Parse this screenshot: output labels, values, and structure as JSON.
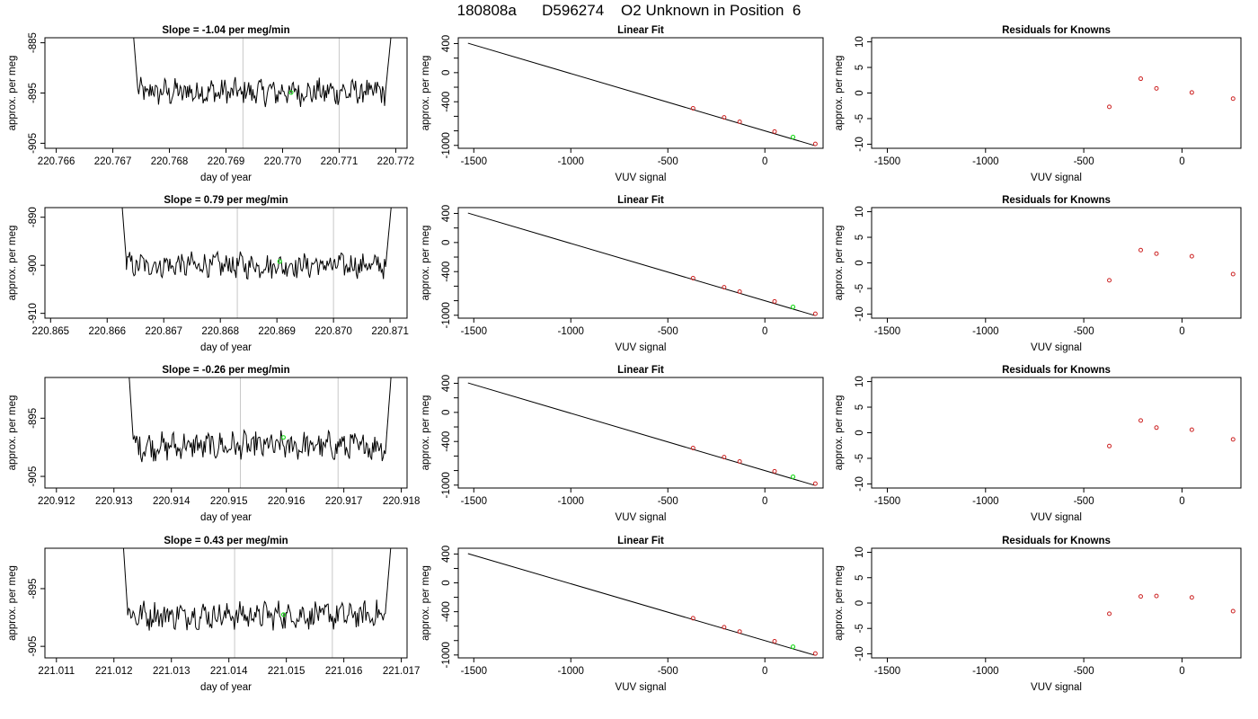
{
  "figure": {
    "title": "180808a      D596274    O2 Unknown in Position  6"
  },
  "colors": {
    "trace": "#000000",
    "marker_known": "#cc2222",
    "marker_unknown": "#22dd22",
    "gridline": "#c8c8c8"
  },
  "chart_data": [
    {
      "type": "line",
      "panel": "row1-timeseries",
      "title": "Slope =  -1.04  per meg/min",
      "xlabel": "day of year",
      "ylabel": "approx. per meg",
      "xticks": [
        "220.766",
        "220.767",
        "220.768",
        "220.769",
        "220.770",
        "220.771",
        "220.772"
      ],
      "xtick_values": [
        220.766,
        220.767,
        220.768,
        220.769,
        220.77,
        220.771,
        220.772
      ],
      "yticks": [
        "-885",
        "-895",
        "-905"
      ],
      "ytick_values": [
        -885,
        -895,
        -905
      ],
      "xlim": [
        220.7658,
        220.7722
      ],
      "ylim": [
        -906,
        -884
      ],
      "vlines": [
        220.7693,
        220.771
      ],
      "trace": {
        "start": 220.7674,
        "end": 220.772,
        "mean": -894.8,
        "amp": 2.2
      },
      "unknown_point": {
        "x": 220.77015,
        "y": -894.9
      }
    },
    {
      "type": "line",
      "panel": "row2-timeseries",
      "title": "Slope =  0.79  per meg/min",
      "xlabel": "day of year",
      "ylabel": "approx. per meg",
      "xticks": [
        "220.865",
        "220.866",
        "220.867",
        "220.868",
        "220.869",
        "220.870",
        "220.871"
      ],
      "xtick_values": [
        220.865,
        220.866,
        220.867,
        220.868,
        220.869,
        220.87,
        220.871
      ],
      "yticks": [
        "-890",
        "-900",
        "-910"
      ],
      "ytick_values": [
        -890,
        -900,
        -910
      ],
      "xlim": [
        220.8649,
        220.8713
      ],
      "ylim": [
        -911,
        -888
      ],
      "vlines": [
        220.8683,
        220.87
      ],
      "trace": {
        "start": 220.8663,
        "end": 220.8711,
        "mean": -900.0,
        "amp": 2.2
      },
      "unknown_point": {
        "x": 220.86905,
        "y": -899.2
      }
    },
    {
      "type": "line",
      "panel": "row3-timeseries",
      "title": "Slope =  -0.26  per meg/min",
      "xlabel": "day of year",
      "ylabel": "approx. per meg",
      "xticks": [
        "220.912",
        "220.913",
        "220.914",
        "220.915",
        "220.916",
        "220.917",
        "220.918"
      ],
      "xtick_values": [
        220.912,
        220.913,
        220.914,
        220.915,
        220.916,
        220.917,
        220.918
      ],
      "yticks": [
        "-895",
        "-905"
      ],
      "ytick_values": [
        -895,
        -905
      ],
      "xlim": [
        220.9118,
        220.9181
      ],
      "ylim": [
        -907,
        -888
      ],
      "vlines": [
        220.9152,
        220.9169
      ],
      "trace": {
        "start": 220.9133,
        "end": 220.9179,
        "mean": -899.8,
        "amp": 2.0
      },
      "unknown_point": {
        "x": 220.91595,
        "y": -898.3
      }
    },
    {
      "type": "line",
      "panel": "row4-timeseries",
      "title": "Slope =  0.43  per meg/min",
      "xlabel": "day of year",
      "ylabel": "approx. per meg",
      "xticks": [
        "221.011",
        "221.012",
        "221.013",
        "221.014",
        "221.015",
        "221.016",
        "221.017"
      ],
      "xtick_values": [
        221.011,
        221.012,
        221.013,
        221.014,
        221.015,
        221.016,
        221.017
      ],
      "yticks": [
        "-895",
        "-905"
      ],
      "ytick_values": [
        -895,
        -905
      ],
      "xlim": [
        221.0108,
        221.0171
      ],
      "ylim": [
        -907,
        -888
      ],
      "vlines": [
        221.0141,
        221.0158
      ],
      "trace": {
        "start": 221.0122,
        "end": 221.0169,
        "mean": -899.6,
        "amp": 2.0
      },
      "unknown_point": {
        "x": 221.01495,
        "y": -899.5
      }
    },
    {
      "type": "scatter",
      "panel": "row1-linearfit",
      "title": "Linear Fit",
      "xlabel": "VUV signal",
      "ylabel": "approx. per meg",
      "xticks": [
        "-1500",
        "-1000",
        "-500",
        "0"
      ],
      "xtick_values": [
        -1500,
        -1000,
        -500,
        0
      ],
      "yticks": [
        "400",
        "0",
        "-400",
        "-1000"
      ],
      "ytick_values": [
        400,
        0,
        -400,
        -1000
      ],
      "yminor_ticks": [
        200,
        -200,
        -600,
        -800
      ],
      "xlim": [
        -1580,
        300
      ],
      "ylim": [
        -1040,
        480
      ],
      "fit_line": {
        "x": [
          -1530,
          260
        ],
        "y": [
          405,
          -1005
        ]
      },
      "known_points": {
        "x": [
          -370,
          -210,
          -130,
          50,
          260
        ],
        "y": [
          -490,
          -615,
          -675,
          -810,
          -980
        ]
      },
      "unknown_point": {
        "x": 145,
        "y": -885
      }
    },
    {
      "type": "scatter",
      "panel": "row2-linearfit",
      "title": "Linear Fit",
      "xlabel": "VUV signal",
      "ylabel": "approx. per meg",
      "xticks": [
        "-1500",
        "-1000",
        "-500",
        "0"
      ],
      "xtick_values": [
        -1500,
        -1000,
        -500,
        0
      ],
      "yticks": [
        "400",
        "0",
        "-400",
        "-1000"
      ],
      "ytick_values": [
        400,
        0,
        -400,
        -1000
      ],
      "yminor_ticks": [
        200,
        -200,
        -600,
        -800
      ],
      "xlim": [
        -1580,
        300
      ],
      "ylim": [
        -1040,
        480
      ],
      "fit_line": {
        "x": [
          -1530,
          260
        ],
        "y": [
          405,
          -1005
        ]
      },
      "known_points": {
        "x": [
          -370,
          -210,
          -130,
          50,
          260
        ],
        "y": [
          -490,
          -615,
          -675,
          -810,
          -980
        ]
      },
      "unknown_point": {
        "x": 145,
        "y": -885
      }
    },
    {
      "type": "scatter",
      "panel": "row3-linearfit",
      "title": "Linear Fit",
      "xlabel": "VUV signal",
      "ylabel": "approx. per meg",
      "xticks": [
        "-1500",
        "-1000",
        "-500",
        "0"
      ],
      "xtick_values": [
        -1500,
        -1000,
        -500,
        0
      ],
      "yticks": [
        "400",
        "0",
        "-400",
        "-1000"
      ],
      "ytick_values": [
        400,
        0,
        -400,
        -1000
      ],
      "yminor_ticks": [
        200,
        -200,
        -600,
        -800
      ],
      "xlim": [
        -1580,
        300
      ],
      "ylim": [
        -1040,
        480
      ],
      "fit_line": {
        "x": [
          -1530,
          260
        ],
        "y": [
          405,
          -1005
        ]
      },
      "known_points": {
        "x": [
          -370,
          -210,
          -130,
          50,
          260
        ],
        "y": [
          -490,
          -615,
          -675,
          -810,
          -980
        ]
      },
      "unknown_point": {
        "x": 145,
        "y": -885
      }
    },
    {
      "type": "scatter",
      "panel": "row4-linearfit",
      "title": "Linear Fit",
      "xlabel": "VUV signal",
      "ylabel": "approx. per meg",
      "xticks": [
        "-1500",
        "-1000",
        "-500",
        "0"
      ],
      "xtick_values": [
        -1500,
        -1000,
        -500,
        0
      ],
      "yticks": [
        "400",
        "0",
        "-400",
        "-1000"
      ],
      "ytick_values": [
        400,
        0,
        -400,
        -1000
      ],
      "yminor_ticks": [
        200,
        -200,
        -600,
        -800
      ],
      "xlim": [
        -1580,
        300
      ],
      "ylim": [
        -1040,
        480
      ],
      "fit_line": {
        "x": [
          -1530,
          260
        ],
        "y": [
          405,
          -1005
        ]
      },
      "known_points": {
        "x": [
          -370,
          -210,
          -130,
          50,
          260
        ],
        "y": [
          -490,
          -615,
          -675,
          -810,
          -980
        ]
      },
      "unknown_point": {
        "x": 145,
        "y": -885
      }
    },
    {
      "type": "scatter",
      "panel": "row1-residuals",
      "title": "Residuals for Knowns",
      "xlabel": "VUV signal",
      "ylabel": "approx. per meg",
      "xticks": [
        "-1500",
        "-1000",
        "-500",
        "0"
      ],
      "xtick_values": [
        -1500,
        -1000,
        -500,
        0
      ],
      "yticks": [
        "10",
        "5",
        "0",
        "-5",
        "-10"
      ],
      "ytick_values": [
        10,
        5,
        0,
        -5,
        -10
      ],
      "xlim": [
        -1580,
        300
      ],
      "ylim": [
        -10.8,
        10.8
      ],
      "known_points": {
        "x": [
          -370,
          -210,
          -130,
          50,
          260
        ],
        "y": [
          -2.7,
          2.8,
          0.9,
          0.1,
          -1.1
        ]
      }
    },
    {
      "type": "scatter",
      "panel": "row2-residuals",
      "title": "Residuals for Knowns",
      "xlabel": "VUV signal",
      "ylabel": "approx. per meg",
      "xticks": [
        "-1500",
        "-1000",
        "-500",
        "0"
      ],
      "xtick_values": [
        -1500,
        -1000,
        -500,
        0
      ],
      "yticks": [
        "10",
        "5",
        "0",
        "-5",
        "-10"
      ],
      "ytick_values": [
        10,
        5,
        0,
        -5,
        -10
      ],
      "xlim": [
        -1580,
        300
      ],
      "ylim": [
        -10.8,
        10.8
      ],
      "known_points": {
        "x": [
          -370,
          -210,
          -130,
          50,
          260
        ],
        "y": [
          -3.4,
          2.5,
          1.8,
          1.3,
          -2.2
        ]
      }
    },
    {
      "type": "scatter",
      "panel": "row3-residuals",
      "title": "Residuals for Knowns",
      "xlabel": "VUV signal",
      "ylabel": "approx. per meg",
      "xticks": [
        "-1500",
        "-1000",
        "-500",
        "0"
      ],
      "xtick_values": [
        -1500,
        -1000,
        -500,
        0
      ],
      "yticks": [
        "10",
        "5",
        "0",
        "-5",
        "-10"
      ],
      "ytick_values": [
        10,
        5,
        0,
        -5,
        -10
      ],
      "xlim": [
        -1580,
        300
      ],
      "ylim": [
        -10.8,
        10.8
      ],
      "known_points": {
        "x": [
          -370,
          -210,
          -130,
          50,
          260
        ],
        "y": [
          -2.6,
          2.4,
          1.0,
          0.6,
          -1.3
        ]
      }
    },
    {
      "type": "scatter",
      "panel": "row4-residuals",
      "title": "Residuals for Knowns",
      "xlabel": "VUV signal",
      "ylabel": "approx. per meg",
      "xticks": [
        "-1500",
        "-1000",
        "-500",
        "0"
      ],
      "xtick_values": [
        -1500,
        -1000,
        -500,
        0
      ],
      "yticks": [
        "10",
        "5",
        "0",
        "-5",
        "-10"
      ],
      "ytick_values": [
        10,
        5,
        0,
        -5,
        -10
      ],
      "xlim": [
        -1580,
        300
      ],
      "ylim": [
        -10.8,
        10.8
      ],
      "known_points": {
        "x": [
          -370,
          -210,
          -130,
          50,
          260
        ],
        "y": [
          -2.1,
          1.3,
          1.4,
          1.1,
          -1.6
        ]
      }
    }
  ]
}
